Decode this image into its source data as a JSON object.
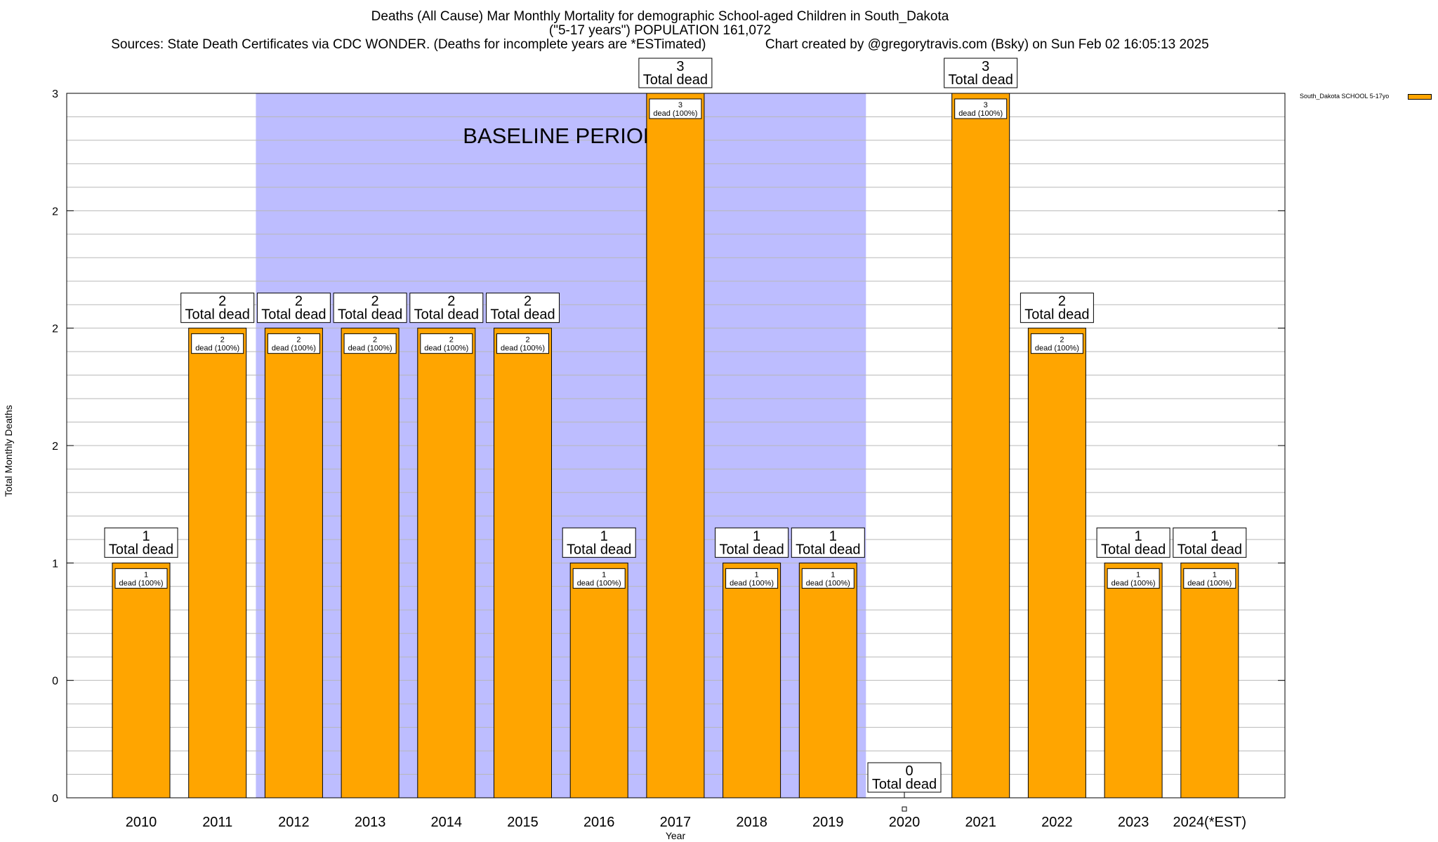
{
  "title": {
    "line1": "Deaths (All Cause) Mar Monthly Mortality for demographic School-aged Children in South_Dakota",
    "line2": "(\"5-17 years\") POPULATION 161,072",
    "line3_left": "Sources: State Death Certificates via CDC WONDER. (Deaths for incomplete years are *ESTimated)",
    "line3_right": "Chart created by @gregorytravis.com (Bsky) on Sun Feb 02 16:05:13 2025"
  },
  "chart_data": {
    "type": "bar",
    "title": "Deaths (All Cause) Mar Monthly Mortality for demographic School-aged Children in South_Dakota",
    "xlabel": "Year",
    "ylabel": "Total Monthly Deaths",
    "ylim": [
      0,
      3
    ],
    "y_tick_values": [
      0,
      0.5,
      1,
      1.5,
      2,
      2.5,
      3
    ],
    "y_tick_labels": [
      "0",
      "0",
      "1",
      "2",
      "2",
      "2",
      "3"
    ],
    "grid": true,
    "categories": [
      "2010",
      "2011",
      "2012",
      "2013",
      "2014",
      "2015",
      "2016",
      "2017",
      "2018",
      "2019",
      "2020",
      "2021",
      "2022",
      "2023",
      "2024(*EST)"
    ],
    "series": [
      {
        "name": "South_Dakota SCHOOL 5-17yo",
        "color": "#ffa500",
        "values": [
          1,
          2,
          2,
          2,
          2,
          2,
          1,
          3,
          1,
          1,
          0,
          3,
          2,
          1,
          1
        ]
      }
    ],
    "total_labels": [
      "1",
      "2",
      "2",
      "2",
      "2",
      "2",
      "1",
      "3",
      "1",
      "1",
      "0",
      "3",
      "2",
      "1",
      "1"
    ],
    "total_suffix": "Total dead",
    "segment_suffix": "dead (100%)",
    "baseline": {
      "label": "BASELINE PERIOD",
      "start_category": "2012",
      "end_category": "2019",
      "color": "#bdbdff"
    },
    "legend_position": "top-right"
  }
}
